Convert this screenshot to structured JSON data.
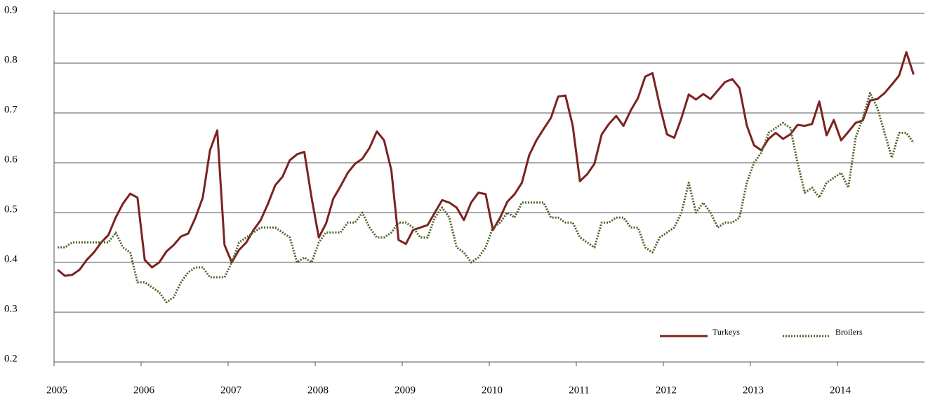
{
  "chart_data": {
    "type": "line",
    "categories": [
      "2005",
      null,
      null,
      null,
      null,
      null,
      null,
      null,
      null,
      null,
      null,
      null,
      "2006",
      null,
      null,
      null,
      null,
      null,
      null,
      null,
      null,
      null,
      null,
      null,
      "2007",
      null,
      null,
      null,
      null,
      null,
      null,
      null,
      null,
      null,
      null,
      null,
      "2008",
      null,
      null,
      null,
      null,
      null,
      null,
      null,
      null,
      null,
      null,
      null,
      "2009",
      null,
      null,
      null,
      null,
      null,
      null,
      null,
      null,
      null,
      null,
      null,
      "2010",
      null,
      null,
      null,
      null,
      null,
      null,
      null,
      null,
      null,
      null,
      null,
      "2011",
      null,
      null,
      null,
      null,
      null,
      null,
      null,
      null,
      null,
      null,
      null,
      "2012",
      null,
      null,
      null,
      null,
      null,
      null,
      null,
      null,
      null,
      null,
      null,
      "2013",
      null,
      null,
      null,
      null,
      null,
      null,
      null,
      null,
      null,
      null,
      null,
      "2014",
      null,
      null,
      null,
      null,
      null,
      null,
      null,
      null,
      null,
      null,
      null
    ],
    "series": [
      {
        "name": "Turkeys",
        "color": "#7b2220",
        "dash": "solid",
        "values": [
          0.385,
          0.373,
          0.375,
          0.385,
          0.405,
          0.42,
          0.44,
          0.455,
          0.49,
          0.518,
          0.538,
          0.53,
          0.405,
          0.39,
          0.4,
          0.422,
          0.435,
          0.452,
          0.458,
          0.49,
          0.53,
          0.625,
          0.665,
          0.435,
          0.4,
          0.425,
          0.44,
          0.465,
          0.485,
          0.518,
          0.555,
          0.572,
          0.605,
          0.617,
          0.622,
          0.53,
          0.45,
          0.478,
          0.528,
          0.553,
          0.58,
          0.598,
          0.608,
          0.63,
          0.663,
          0.645,
          0.585,
          0.445,
          0.437,
          0.465,
          0.47,
          0.475,
          0.5,
          0.525,
          0.52,
          0.51,
          0.485,
          0.52,
          0.54,
          0.537,
          0.465,
          0.49,
          0.522,
          0.537,
          0.56,
          0.615,
          0.645,
          0.668,
          0.69,
          0.733,
          0.735,
          0.675,
          0.563,
          0.577,
          0.598,
          0.657,
          0.678,
          0.694,
          0.674,
          0.705,
          0.73,
          0.773,
          0.78,
          0.715,
          0.657,
          0.65,
          0.69,
          0.737,
          0.727,
          0.738,
          0.728,
          0.745,
          0.762,
          0.768,
          0.75,
          0.675,
          0.635,
          0.625,
          0.648,
          0.66,
          0.648,
          0.657,
          0.676,
          0.674,
          0.678,
          0.723,
          0.655,
          0.686,
          0.645,
          0.662,
          0.68,
          0.685,
          0.725,
          0.728,
          0.74,
          0.757,
          0.775,
          0.822,
          0.777,
          null
        ]
      },
      {
        "name": "Broilers",
        "color": "#4f6228",
        "dash": "dotted",
        "values": [
          0.43,
          0.43,
          0.44,
          0.44,
          0.44,
          0.44,
          0.44,
          0.44,
          0.46,
          0.43,
          0.42,
          0.36,
          0.36,
          0.35,
          0.34,
          0.32,
          0.33,
          0.36,
          0.38,
          0.39,
          0.39,
          0.37,
          0.37,
          0.37,
          0.4,
          0.44,
          0.45,
          0.46,
          0.47,
          0.47,
          0.47,
          0.46,
          0.45,
          0.4,
          0.41,
          0.4,
          0.44,
          0.46,
          0.46,
          0.46,
          0.48,
          0.48,
          0.5,
          0.47,
          0.45,
          0.45,
          0.46,
          0.48,
          0.48,
          0.47,
          0.45,
          0.45,
          0.49,
          0.51,
          0.49,
          0.43,
          0.42,
          0.4,
          0.41,
          0.43,
          0.47,
          0.48,
          0.5,
          0.49,
          0.52,
          0.52,
          0.52,
          0.52,
          0.49,
          0.49,
          0.48,
          0.48,
          0.45,
          0.44,
          0.43,
          0.48,
          0.48,
          0.49,
          0.49,
          0.47,
          0.47,
          0.43,
          0.42,
          0.45,
          0.46,
          0.47,
          0.5,
          0.56,
          0.5,
          0.52,
          0.5,
          0.47,
          0.48,
          0.48,
          0.49,
          0.56,
          0.6,
          0.62,
          0.66,
          0.67,
          0.68,
          0.67,
          0.6,
          0.54,
          0.55,
          0.53,
          0.56,
          0.57,
          0.58,
          0.55,
          0.65,
          0.69,
          0.74,
          0.71,
          0.66,
          0.61,
          0.66,
          0.66,
          0.64,
          null
        ]
      }
    ],
    "ylim": [
      0.2,
      0.9
    ],
    "yticks": [
      0.2,
      0.3,
      0.4,
      0.5,
      0.6,
      0.7,
      0.8,
      0.9
    ],
    "grid": true,
    "legend": "lower-right"
  }
}
